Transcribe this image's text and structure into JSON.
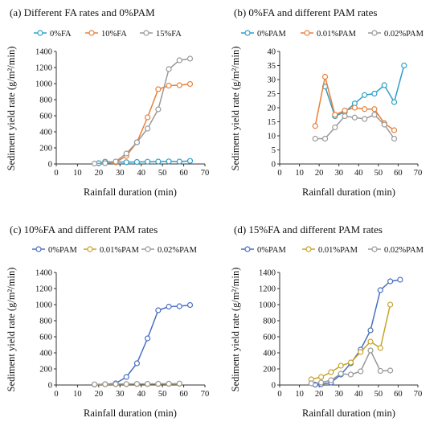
{
  "chart_data": [
    {
      "type": "line",
      "title": "(a) Different FA rates and 0%PAM",
      "xlabel": "Rainfall duration (min)",
      "ylabel": "Sediment yield rate (g/m²/min)",
      "xlim": [
        0,
        70
      ],
      "xticks": [
        0,
        10,
        20,
        30,
        40,
        50,
        60,
        70
      ],
      "ylim": [
        0,
        1400
      ],
      "yticks": [
        0,
        200,
        400,
        600,
        800,
        1000,
        1200,
        1400
      ],
      "series": [
        {
          "name": "0%FA",
          "color": "#2e9fc9",
          "marker": "open-circle",
          "x": [
            20,
            23,
            28,
            33,
            38,
            43,
            48,
            53,
            58,
            63
          ],
          "y": [
            10,
            28,
            25,
            22,
            25,
            28,
            30,
            32,
            30,
            38
          ]
        },
        {
          "name": "10%FA",
          "color": "#e8803a",
          "marker": "open-circle",
          "x": [
            23,
            28,
            33,
            38,
            43,
            48,
            53,
            58,
            63
          ],
          "y": [
            10,
            20,
            100,
            270,
            580,
            930,
            975,
            980,
            995
          ]
        },
        {
          "name": "15%FA",
          "color": "#999999",
          "marker": "open-circle",
          "x": [
            18,
            23,
            28,
            33,
            38,
            43,
            48,
            53,
            58,
            63
          ],
          "y": [
            5,
            10,
            30,
            130,
            270,
            440,
            680,
            1180,
            1290,
            1310
          ]
        }
      ]
    },
    {
      "type": "line",
      "title": "(b) 0%FA and different PAM rates",
      "xlabel": "Rainfall duration (min)",
      "ylabel": "Sediment yield rate (g/m²/min)",
      "xlim": [
        0,
        70
      ],
      "xticks": [
        0,
        10,
        20,
        30,
        40,
        50,
        60,
        70
      ],
      "ylim": [
        0,
        40
      ],
      "yticks": [
        0,
        5,
        10,
        15,
        20,
        25,
        30,
        35,
        40
      ],
      "series": [
        {
          "name": "0%PAM",
          "color": "#2e9fc9",
          "marker": "open-circle",
          "x": [
            23,
            28,
            33,
            38,
            43,
            48,
            53,
            58,
            63
          ],
          "y": [
            27.5,
            17,
            18.5,
            21.5,
            24.5,
            25,
            28,
            22,
            35
          ]
        },
        {
          "name": "0.01%PAM",
          "color": "#e8803a",
          "marker": "open-circle",
          "x": [
            18,
            23,
            28,
            33,
            38,
            43,
            48,
            53,
            58
          ],
          "y": [
            13.5,
            31,
            17.5,
            19,
            20,
            19.5,
            19.5,
            14.5,
            12
          ]
        },
        {
          "name": "0.02%PAM",
          "color": "#999999",
          "marker": "open-circle",
          "x": [
            18,
            23,
            28,
            33,
            38,
            43,
            48,
            53,
            58
          ],
          "y": [
            9,
            9,
            13,
            17,
            16.5,
            16,
            17.5,
            14,
            9
          ]
        }
      ]
    },
    {
      "type": "line",
      "title": "(c) 10%FA and different PAM rates",
      "xlabel": "Rainfall duration (min)",
      "ylabel": "Sediment yield rate (g/m²/min)",
      "xlim": [
        0,
        70
      ],
      "xticks": [
        0,
        10,
        20,
        30,
        40,
        50,
        60,
        70
      ],
      "ylim": [
        0,
        1400
      ],
      "yticks": [
        0,
        200,
        400,
        600,
        800,
        1000,
        1200,
        1400
      ],
      "series": [
        {
          "name": "0%PAM",
          "color": "#4a6fc0",
          "marker": "open-circle",
          "x": [
            23,
            28,
            33,
            38,
            43,
            48,
            53,
            58,
            63
          ],
          "y": [
            10,
            20,
            100,
            270,
            580,
            930,
            975,
            980,
            995
          ]
        },
        {
          "name": "0.01%PAM",
          "color": "#c9a22a",
          "marker": "open-circle",
          "x": [
            18,
            23,
            28,
            33,
            38,
            43,
            48,
            53,
            58
          ],
          "y": [
            5,
            8,
            10,
            10,
            12,
            12,
            12,
            14,
            15
          ]
        },
        {
          "name": "0.02%PAM",
          "color": "#999999",
          "marker": "open-circle",
          "x": [
            18,
            23,
            28,
            33,
            38,
            43,
            48,
            53,
            58
          ],
          "y": [
            8,
            10,
            12,
            12,
            14,
            14,
            15,
            16,
            18
          ]
        }
      ]
    },
    {
      "type": "line",
      "title": "(d) 15%FA and different PAM rates",
      "xlabel": "Rainfall duration (min)",
      "ylabel": "Sediment yield rate (g/m²/min)",
      "xlim": [
        0,
        70
      ],
      "xticks": [
        0,
        10,
        20,
        30,
        40,
        50,
        60,
        70
      ],
      "ylim": [
        0,
        1400
      ],
      "yticks": [
        0,
        200,
        400,
        600,
        800,
        1000,
        1200,
        1400
      ],
      "series": [
        {
          "name": "0%PAM",
          "color": "#4a6fc0",
          "marker": "open-circle",
          "x": [
            18,
            21,
            26,
            31,
            36,
            41,
            46,
            51,
            56,
            61
          ],
          "y": [
            5,
            10,
            30,
            130,
            270,
            440,
            680,
            1180,
            1290,
            1310
          ]
        },
        {
          "name": "0.01%PAM",
          "color": "#c9a22a",
          "marker": "open-circle",
          "x": [
            16,
            21,
            26,
            31,
            36,
            41,
            46,
            51,
            56
          ],
          "y": [
            70,
            100,
            160,
            240,
            280,
            410,
            540,
            460,
            1000
          ]
        },
        {
          "name": "0.02%PAM",
          "color": "#999999",
          "marker": "open-circle",
          "x": [
            16,
            21,
            26,
            31,
            36,
            41,
            46,
            51,
            56
          ],
          "y": [
            20,
            30,
            60,
            140,
            130,
            170,
            430,
            175,
            180
          ]
        }
      ]
    }
  ]
}
